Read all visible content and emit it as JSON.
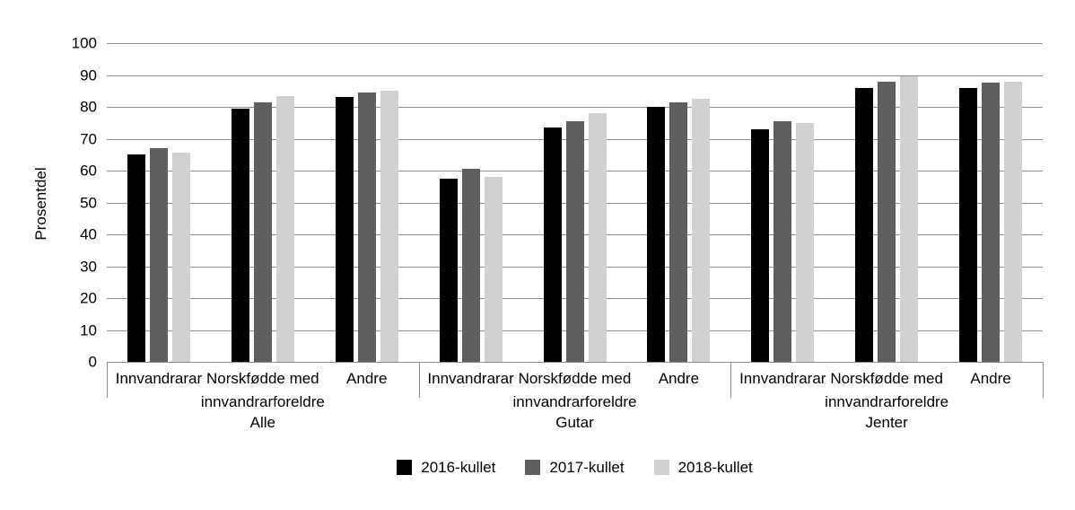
{
  "chart_data": {
    "type": "bar",
    "title": "",
    "ylabel": "Prosentdel",
    "xlabel": "",
    "ylim": [
      0,
      100
    ],
    "yticks": [
      0,
      10,
      20,
      30,
      40,
      50,
      60,
      70,
      80,
      90,
      100
    ],
    "grid": true,
    "gridline_color": "#8f8e85",
    "legend_position": "bottom",
    "groups": [
      "Alle",
      "Gutar",
      "Jenter"
    ],
    "categories": [
      "Innvandrarar",
      "Norskfødde med\ninnvandrarforeldre",
      "Andre"
    ],
    "series": [
      {
        "name": "2016-kullet",
        "color": "#000000",
        "values": [
          65,
          79.5,
          83,
          57.5,
          73.5,
          80,
          73,
          86,
          86
        ]
      },
      {
        "name": "2017-kullet",
        "color": "#5f5f5f",
        "values": [
          67,
          81.5,
          84.5,
          60.5,
          75.5,
          81.5,
          75.5,
          88,
          87.5
        ]
      },
      {
        "name": "2018-kullet",
        "color": "#d1d1d1",
        "values": [
          65.5,
          83.5,
          85,
          58,
          78,
          82.5,
          75,
          89.5,
          88
        ]
      }
    ]
  }
}
